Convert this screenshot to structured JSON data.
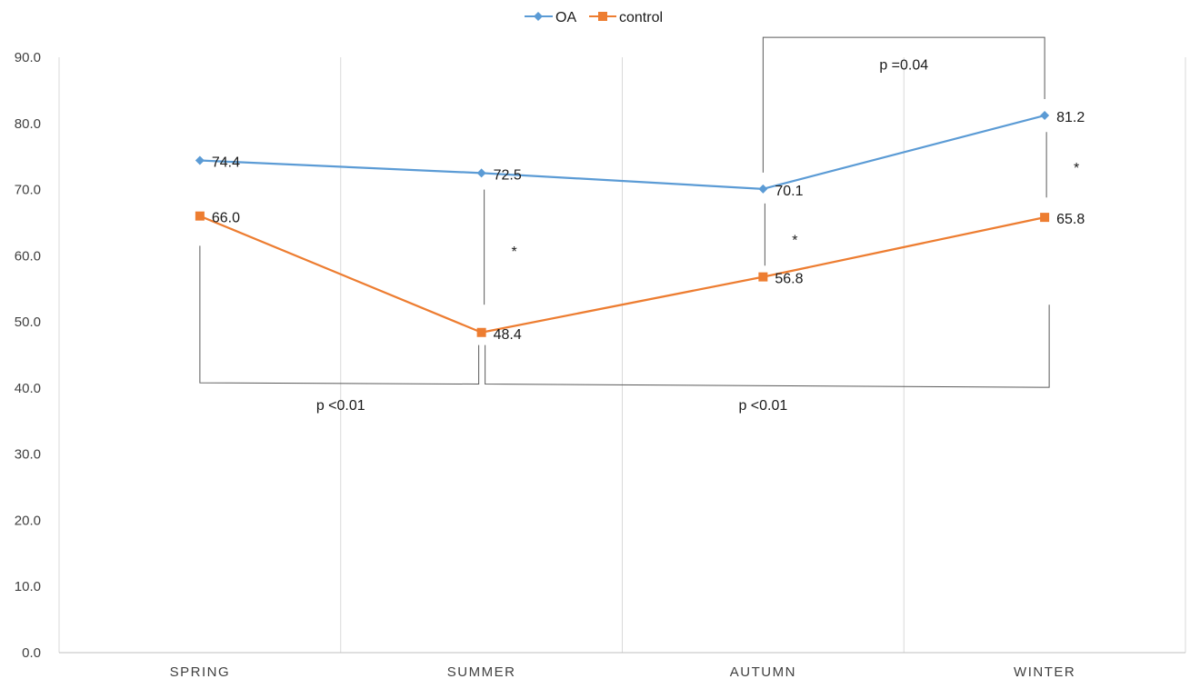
{
  "chart_data": {
    "type": "line",
    "title": "",
    "xlabel": "",
    "ylabel": "",
    "categories": [
      "SPRING",
      "SUMMER",
      "AUTUMN",
      "WINTER"
    ],
    "series": [
      {
        "name": "OA",
        "values": [
          74.4,
          72.5,
          70.1,
          81.2
        ],
        "labels": [
          "74.4",
          "72.5",
          "70.1",
          "81.2"
        ],
        "color": "#5B9BD5",
        "marker": "diamond"
      },
      {
        "name": "control",
        "values": [
          66.0,
          48.4,
          56.8,
          65.8
        ],
        "labels": [
          "66.0",
          "48.4",
          "56.8",
          "65.8"
        ],
        "color": "#ED7D31",
        "marker": "square"
      }
    ],
    "ylim": [
      0,
      90
    ],
    "ytick_values": [
      0,
      10,
      20,
      30,
      40,
      50,
      60,
      70,
      80,
      90
    ],
    "ytick_labels": [
      "0.0",
      "10.0",
      "20.0",
      "30.0",
      "40.0",
      "50.0",
      "60.0",
      "70.0",
      "80.0",
      "90.0"
    ],
    "grid": "vertical",
    "legend_position": "top-center",
    "annotations": {
      "brackets": [
        {
          "text": "p =0.04",
          "from": "AUTUMN",
          "to": "WINTER",
          "side": "top"
        },
        {
          "text": "p <0.01",
          "from": "SPRING",
          "to": "SUMMER",
          "side": "bottom"
        },
        {
          "text": "p <0.01",
          "from": "SUMMER",
          "to": "WINTER",
          "side": "bottom"
        }
      ],
      "stars": [
        {
          "text": "*",
          "category": "SUMMER"
        },
        {
          "text": "*",
          "category": "AUTUMN"
        },
        {
          "text": "*",
          "category": "WINTER"
        }
      ]
    }
  }
}
